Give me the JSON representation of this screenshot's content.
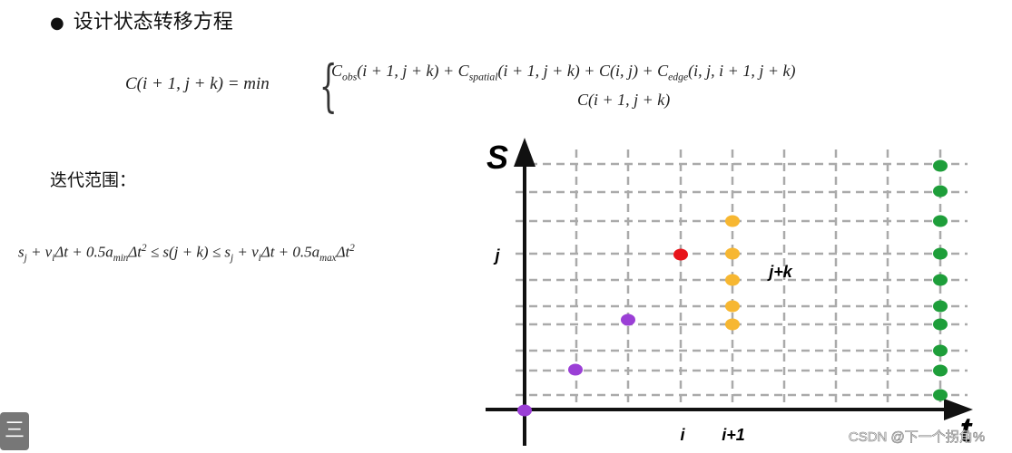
{
  "header": {
    "title": "设计状态转移方程"
  },
  "formula": {
    "lhs": "C(i + 1, j + k) = min",
    "case1": [
      "C",
      {
        "sub": "obs"
      },
      "(i + 1, j + k) + C",
      {
        "sub": "spatial"
      },
      "(i + 1, j + k) + C(i, j) + C",
      {
        "sub": "edge"
      },
      "(i, j, i + 1, j + k)"
    ],
    "case2": [
      "C(i + 1, j + k)"
    ]
  },
  "range": {
    "label": "迭代范围：",
    "inequality": [
      "s",
      {
        "sub": "j"
      },
      " + v",
      {
        "sub": "i"
      },
      "Δt + 0.5a",
      {
        "sub": "min"
      },
      "Δt",
      {
        "sup": "2"
      },
      " ≤ s(j + k) ≤ s",
      {
        "sub": "j"
      },
      " + v",
      {
        "sub": "i"
      },
      "Δt + 0.5a",
      {
        "sub": "max"
      },
      "Δt",
      {
        "sup": "2"
      }
    ]
  },
  "diagram": {
    "y_axis": "S",
    "x_axis": "t",
    "j_label": "j",
    "i_label": "i",
    "i1_label": "i+1",
    "jk_label": "j+k"
  },
  "watermark": "CSDN @下一个拐角%",
  "menu_icon": "三"
}
